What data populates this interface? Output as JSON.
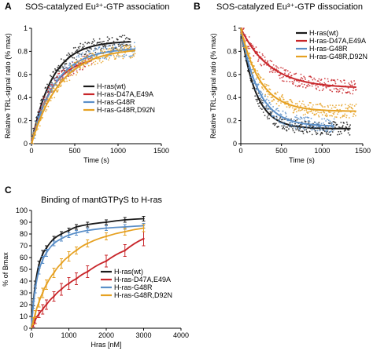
{
  "colors": {
    "wt": "#1a1a1a",
    "d47a": "#c8262a",
    "g48r": "#5b8fc8",
    "g48rd92n": "#e6a122",
    "axis": "#000000"
  },
  "chart_data": [
    {
      "panel": "A",
      "type": "scatter",
      "title": "SOS-catalyzed Eu³⁺-GTP association",
      "xlabel": "Time (s)",
      "ylabel": "Relative TRL-signal ratio (% max)",
      "xlim": [
        0,
        1500
      ],
      "ylim": [
        0,
        1
      ],
      "xticks": [
        "0",
        "500",
        "1000",
        "1500"
      ],
      "yticks": [
        "0",
        "0.2",
        "0.4",
        "0.6",
        "0.8",
        "1"
      ],
      "legend_position": "center-right",
      "fit_lines": true,
      "series": [
        {
          "name": "H-ras(wt)",
          "color_key": "wt",
          "model": "assoc",
          "plateau": 0.89,
          "k": 0.0042,
          "xmax": 1150
        },
        {
          "name": "H-ras-D47A,E49A",
          "color_key": "d47a",
          "model": "assoc",
          "plateau": 0.76,
          "k": 0.0042,
          "xmax": 700
        },
        {
          "name": "H-ras-G48R",
          "color_key": "g48r",
          "model": "assoc",
          "plateau": 0.83,
          "k": 0.0036,
          "xmax": 1200
        },
        {
          "name": "H-ras-G48R,D92N",
          "color_key": "g48rd92n",
          "model": "assoc",
          "plateau": 0.83,
          "k": 0.003,
          "xmax": 1200
        }
      ]
    },
    {
      "panel": "B",
      "type": "scatter",
      "title": "SOS-catalyzed Eu³⁺-GTP dissociation",
      "xlabel": "Time (s)",
      "ylabel": "Relative TRL-signal ratio (% max)",
      "xlim": [
        0,
        1500
      ],
      "ylim": [
        0,
        1
      ],
      "xticks": [
        "0",
        "500",
        "1000",
        "1500"
      ],
      "yticks": [
        "0",
        "0.2",
        "0.4",
        "0.6",
        "0.8",
        "1"
      ],
      "legend_position": "top-right",
      "fit_lines": true,
      "series": [
        {
          "name": "H-ras(wt)",
          "color_key": "wt",
          "model": "decay",
          "start": 1.0,
          "floor": 0.13,
          "k": 0.0055,
          "xmax": 1350
        },
        {
          "name": "H-ras-D47A,E49A",
          "color_key": "d47a",
          "model": "decay",
          "start": 1.0,
          "floor": 0.48,
          "k": 0.0028,
          "xmax": 1420
        },
        {
          "name": "H-ras-G48R",
          "color_key": "g48r",
          "model": "decay",
          "start": 1.0,
          "floor": 0.15,
          "k": 0.0046,
          "xmax": 1150
        },
        {
          "name": "H-ras-G48R,D92N",
          "color_key": "g48rd92n",
          "model": "decay",
          "start": 1.0,
          "floor": 0.28,
          "k": 0.0042,
          "xmax": 1420
        }
      ]
    },
    {
      "panel": "C",
      "type": "scatter",
      "title": "Binding of mantGTPγS to H-ras",
      "xlabel": "Hras [nM]",
      "ylabel": "% of Bmax",
      "xlim": [
        0,
        4000
      ],
      "ylim": [
        0,
        100
      ],
      "xticks": [
        "0",
        "1000",
        "2000",
        "3000",
        "4000"
      ],
      "yticks": [
        "0",
        "10",
        "20",
        "30",
        "40",
        "50",
        "60",
        "70",
        "80",
        "90",
        "100"
      ],
      "legend_position": "lower-right",
      "fit_lines": true,
      "x": [
        50,
        100,
        200,
        300,
        400,
        600,
        800,
        1000,
        1200,
        1500,
        2000,
        2500,
        3000
      ],
      "series": [
        {
          "name": "H-ras(wt)",
          "color_key": "wt",
          "values": [
            22,
            37,
            54,
            63,
            68,
            76,
            80,
            83,
            86,
            88,
            90,
            92,
            93
          ],
          "err": [
            3,
            3,
            3,
            3,
            2,
            2,
            2,
            2,
            2,
            2,
            2,
            2,
            2
          ]
        },
        {
          "name": "H-ras-D47A,E49A",
          "color_key": "d47a",
          "values": [
            3,
            7,
            12,
            16,
            20,
            27,
            33,
            38,
            42,
            48,
            57,
            66,
            76
          ],
          "err": [
            2,
            3,
            3,
            4,
            4,
            4,
            5,
            5,
            5,
            5,
            5,
            5,
            6
          ]
        },
        {
          "name": "H-ras-G48R",
          "color_key": "g48r",
          "values": [
            20,
            33,
            49,
            58,
            64,
            72,
            76,
            79,
            81,
            83,
            85,
            86,
            87
          ],
          "err": [
            3,
            3,
            3,
            3,
            3,
            2,
            2,
            2,
            2,
            2,
            2,
            2,
            2
          ]
        },
        {
          "name": "H-ras-G48R,D92N",
          "color_key": "g48rd92n",
          "values": [
            6,
            12,
            22,
            30,
            37,
            47,
            55,
            61,
            66,
            72,
            78,
            82,
            85
          ],
          "err": [
            3,
            3,
            4,
            4,
            4,
            4,
            4,
            4,
            3,
            3,
            3,
            3,
            3
          ]
        }
      ]
    }
  ]
}
